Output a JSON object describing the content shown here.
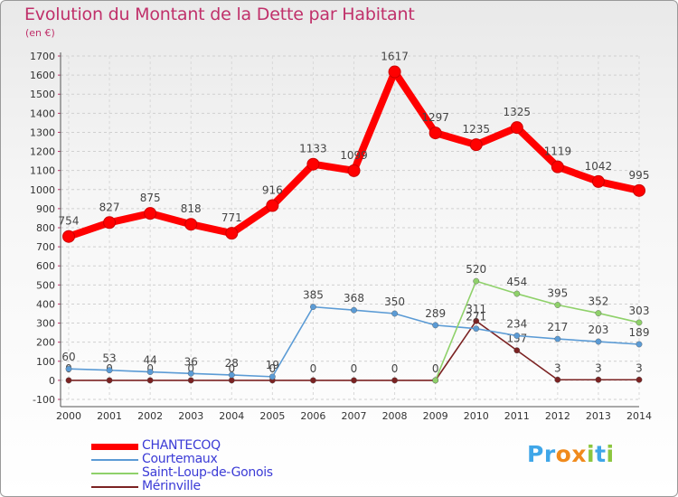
{
  "title": "Evolution du Montant de la Dette par Habitant",
  "subtitle": "(en €)",
  "logo": {
    "text": "Proxiti",
    "colors": [
      "#3fa6e8",
      "#f08a1c",
      "#8cc63f"
    ]
  },
  "chart_data": {
    "type": "line",
    "title": "Evolution du Montant de la Dette par Habitant",
    "ylabel": "(en €)",
    "xlabel": "",
    "x": [
      "2000",
      "2001",
      "2002",
      "2003",
      "2004",
      "2005",
      "2006",
      "2007",
      "2008",
      "2009",
      "2010",
      "2011",
      "2012",
      "2013",
      "2014"
    ],
    "ylim": [
      -100,
      1700
    ],
    "yticks": [
      -100,
      0,
      100,
      200,
      300,
      400,
      500,
      600,
      700,
      800,
      900,
      1000,
      1100,
      1200,
      1300,
      1400,
      1500,
      1600,
      1700
    ],
    "grid": true,
    "legend_position": "bottom-left",
    "series": [
      {
        "name": "CHANTECOQ",
        "color": "#ff0000",
        "values": [
          754,
          827,
          875,
          818,
          771,
          916,
          1133,
          1099,
          1617,
          1297,
          1235,
          1325,
          1119,
          1042,
          995
        ],
        "labels": [
          "754",
          "827",
          "875",
          "818",
          "771",
          "916",
          "1133",
          "1099",
          "1617",
          "1297",
          "1235",
          "1325",
          "1119",
          "1042",
          "995"
        ]
      },
      {
        "name": "Courtemaux",
        "color": "#5b9bd5",
        "values": [
          60,
          53,
          44,
          36,
          28,
          19,
          385,
          368,
          350,
          289,
          271,
          234,
          217,
          203,
          189
        ],
        "labels": [
          "60",
          "53",
          "44",
          "36",
          "28",
          "19",
          "385",
          "368",
          "350",
          "289",
          "271",
          "234",
          "217",
          "203",
          "189"
        ]
      },
      {
        "name": "Saint-Loup-de-Gonois",
        "color": "#8fd16a",
        "values": [
          null,
          null,
          null,
          null,
          null,
          null,
          null,
          null,
          null,
          0,
          520,
          454,
          395,
          352,
          303
        ],
        "labels": [
          null,
          null,
          null,
          null,
          null,
          null,
          null,
          null,
          null,
          null,
          "520",
          "454",
          "395",
          "352",
          "303"
        ]
      },
      {
        "name": "Mérinville",
        "color": "#7b2222",
        "values": [
          0,
          0,
          0,
          0,
          0,
          0,
          0,
          0,
          0,
          0,
          311,
          157,
          3,
          3,
          3
        ],
        "labels": [
          "0",
          "0",
          "0",
          "0",
          "0",
          "0",
          "0",
          "0",
          "0",
          "0",
          "311",
          "157",
          "3",
          "3",
          "3"
        ]
      }
    ]
  }
}
